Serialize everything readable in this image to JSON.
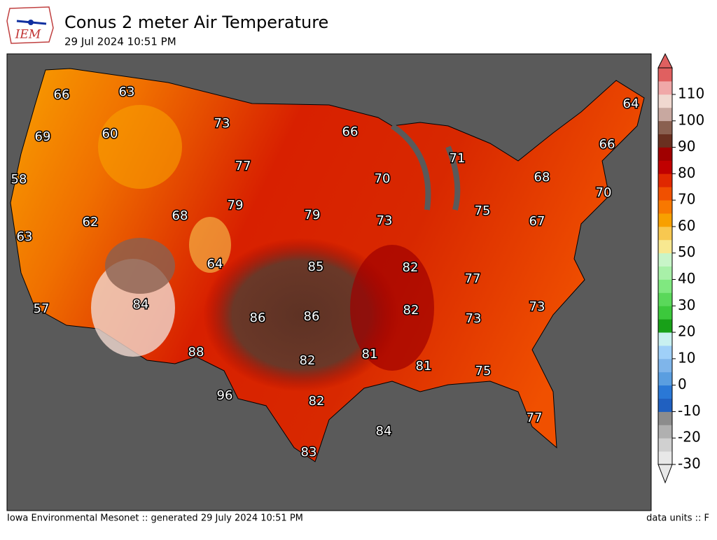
{
  "header": {
    "title": "Conus 2 meter Air Temperature",
    "subtitle": "29 Jul 2024 10:51 PM",
    "logo": "IEM"
  },
  "map": {
    "labels": [
      66,
      63,
      73,
      66,
      64,
      69,
      60,
      77,
      66,
      58,
      70,
      71,
      68,
      62,
      79,
      79,
      68,
      73,
      75,
      67,
      70,
      63,
      64,
      85,
      82,
      84,
      77,
      57,
      86,
      86,
      82,
      73,
      73,
      88,
      82,
      81,
      81,
      75,
      96,
      82,
      77,
      84,
      83
    ]
  },
  "colorbar": {
    "ticks": [
      -30,
      -20,
      -10,
      0,
      10,
      20,
      30,
      40,
      50,
      60,
      70,
      80,
      90,
      100,
      110
    ],
    "colors": [
      "#e8e8e8",
      "#d0d0d0",
      "#b0b0b0",
      "#8c8c8c",
      "#2060c0",
      "#2a78d6",
      "#5a9ee0",
      "#7fb5ea",
      "#9fd0f8",
      "#c8f0f0",
      "#18a018",
      "#3cc83c",
      "#5ad85a",
      "#80e880",
      "#a8f0a8",
      "#c8f5c8",
      "#f8e890",
      "#f8c850",
      "#f8a000",
      "#f87800",
      "#f05000",
      "#e02800",
      "#c00000",
      "#a00000",
      "#6a3020",
      "#8a6050",
      "#c8a8a0",
      "#f0d8d0",
      "#f0a8a8",
      "#e06060"
    ]
  },
  "footer": {
    "left": "Iowa Environmental Mesonet :: generated 29 July 2024 10:51 PM",
    "right": "data units :: F"
  }
}
